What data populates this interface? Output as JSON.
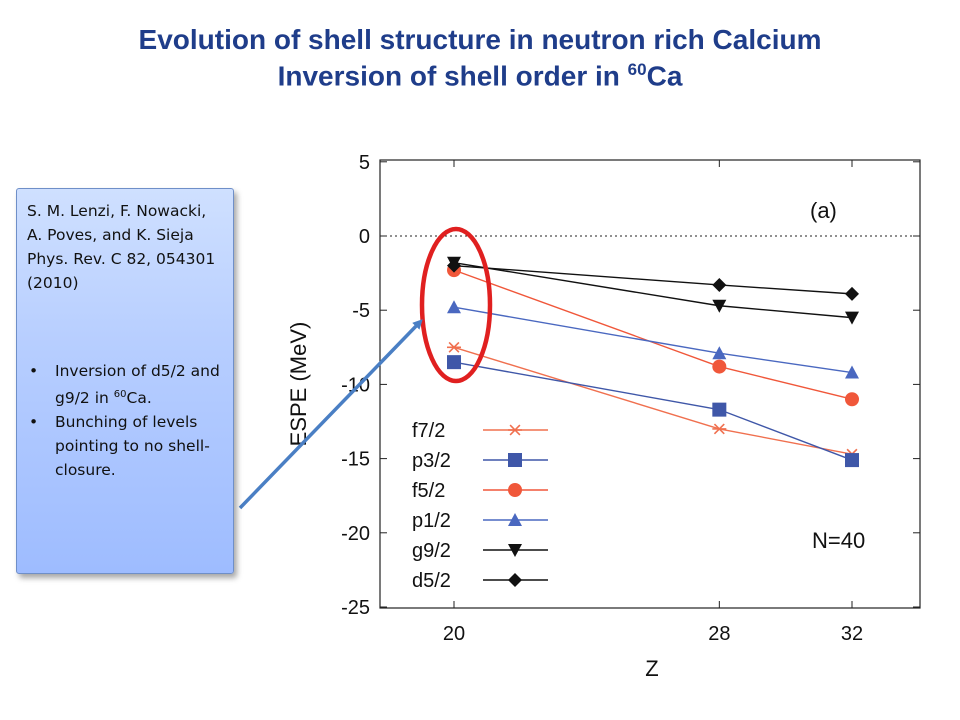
{
  "slide": {
    "title_line1": "Evolution of shell structure in neutron rich Calcium",
    "title_line2_prefix": "Inversion of shell order in ",
    "title_line2_sup": "60",
    "title_line2_suffix": "Ca"
  },
  "reference_box": {
    "citation": "S. M. Lenzi, F. Nowacki, A. Poves, and K. Sieja Phys. Rev. C 82, 054301 (2010)",
    "bullet1_prefix": "Inversion of d5/2 and g9/2 in ",
    "bullet1_sup": "60",
    "bullet1_suffix": "Ca.",
    "bullet2": "Bunching of levels pointing to no shell-closure."
  },
  "colors": {
    "title": "#1f3d8a",
    "f7/2": "#f0704f",
    "p3/2": "#3f57a8",
    "f5/2": "#f0573a",
    "p1/2": "#4a68c0",
    "g9/2": "#111111",
    "d5/2": "#111111",
    "highlight_ellipse": "#e02020",
    "arrow": "#4a7fc4"
  },
  "chart_data": {
    "type": "line",
    "x": [
      20,
      28,
      32
    ],
    "xlabel": "Z",
    "ylabel": "ESPE (MeV)",
    "xlim": [
      18,
      34
    ],
    "ylim": [
      -25,
      5
    ],
    "xticks": [
      20,
      28,
      32
    ],
    "yticks": [
      5,
      0,
      -5,
      -10,
      -15,
      -20,
      -25
    ],
    "zero_line": "dotted",
    "annotations": [
      "(a)",
      "N=40"
    ],
    "legend_position": "bottom-left",
    "series": [
      {
        "name": "f7/2",
        "marker": "asterisk",
        "values": [
          -7.5,
          -13.0,
          -14.7
        ]
      },
      {
        "name": "p3/2",
        "marker": "square",
        "values": [
          -8.5,
          -11.7,
          -15.1
        ]
      },
      {
        "name": "f5/2",
        "marker": "circle",
        "values": [
          -2.3,
          -8.8,
          -11.0
        ]
      },
      {
        "name": "p1/2",
        "marker": "triangle-up",
        "values": [
          -4.8,
          -7.9,
          -9.2
        ]
      },
      {
        "name": "g9/2",
        "marker": "triangle-down",
        "values": [
          -1.8,
          -4.7,
          -5.5
        ]
      },
      {
        "name": "d5/2",
        "marker": "diamond",
        "values": [
          -2.0,
          -3.3,
          -3.9
        ]
      }
    ]
  }
}
